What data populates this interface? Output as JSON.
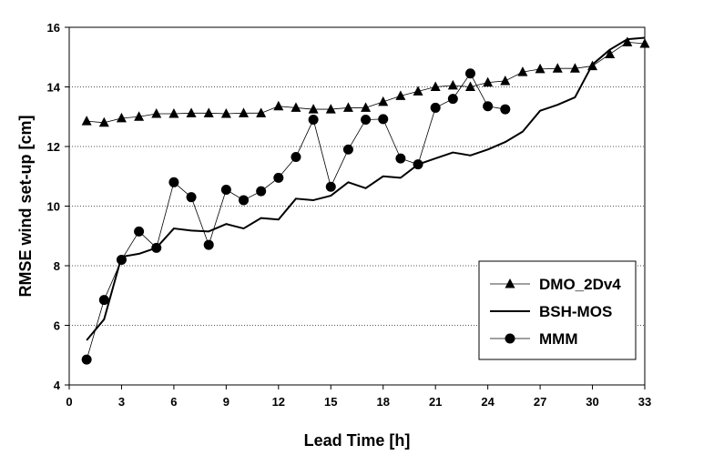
{
  "chart_data": {
    "type": "line",
    "xlabel": "Lead Time [h]",
    "ylabel": "RMSE wind set-up [cm]",
    "xlim": [
      0,
      33
    ],
    "ylim": [
      4,
      16
    ],
    "xticks": [
      0,
      3,
      6,
      9,
      12,
      15,
      18,
      21,
      24,
      27,
      30,
      33
    ],
    "yticks": [
      4,
      6,
      8,
      10,
      12,
      14,
      16
    ],
    "grid": "horizontal-dotted",
    "legend_position": "bottom-right",
    "series": [
      {
        "name": "DMO_2Dv4",
        "marker": "triangle",
        "line": "thin",
        "x": [
          1,
          2,
          3,
          4,
          5,
          6,
          7,
          8,
          9,
          10,
          11,
          12,
          13,
          14,
          15,
          16,
          17,
          18,
          19,
          20,
          21,
          22,
          23,
          24,
          25,
          26,
          27,
          28,
          29,
          30,
          31,
          32,
          33
        ],
        "y": [
          12.85,
          12.8,
          12.95,
          13.0,
          13.1,
          13.1,
          13.12,
          13.12,
          13.1,
          13.12,
          13.12,
          13.35,
          13.3,
          13.25,
          13.25,
          13.3,
          13.3,
          13.5,
          13.7,
          13.85,
          14.0,
          14.05,
          14.0,
          14.15,
          14.2,
          14.5,
          14.6,
          14.62,
          14.62,
          14.7,
          15.1,
          15.5,
          15.45
        ]
      },
      {
        "name": "BSH-MOS",
        "marker": "none",
        "line": "thick",
        "x": [
          1,
          2,
          3,
          4,
          5,
          6,
          7,
          8,
          9,
          10,
          11,
          12,
          13,
          14,
          15,
          16,
          17,
          18,
          19,
          20,
          21,
          22,
          23,
          24,
          25,
          26,
          27,
          28,
          29,
          30,
          31,
          32,
          33
        ],
        "y": [
          5.5,
          6.2,
          8.3,
          8.4,
          8.6,
          9.25,
          9.18,
          9.15,
          9.4,
          9.25,
          9.6,
          9.55,
          10.25,
          10.2,
          10.35,
          10.8,
          10.6,
          11.0,
          10.95,
          11.4,
          11.6,
          11.8,
          11.7,
          11.9,
          12.15,
          12.5,
          13.2,
          13.4,
          13.65,
          14.75,
          15.25,
          15.6,
          15.65
        ]
      },
      {
        "name": "MMM",
        "marker": "circle",
        "line": "thin",
        "x": [
          1,
          2,
          3,
          4,
          5,
          6,
          7,
          8,
          9,
          10,
          11,
          12,
          13,
          14,
          15,
          16,
          17,
          18,
          19,
          20,
          21,
          22,
          23,
          24,
          25
        ],
        "y": [
          4.85,
          6.85,
          8.2,
          9.15,
          8.6,
          10.8,
          10.3,
          8.7,
          10.55,
          10.2,
          10.5,
          10.95,
          11.65,
          12.9,
          10.65,
          11.9,
          12.9,
          12.92,
          11.6,
          11.4,
          13.3,
          13.6,
          14.45,
          13.35,
          13.25
        ]
      }
    ]
  }
}
